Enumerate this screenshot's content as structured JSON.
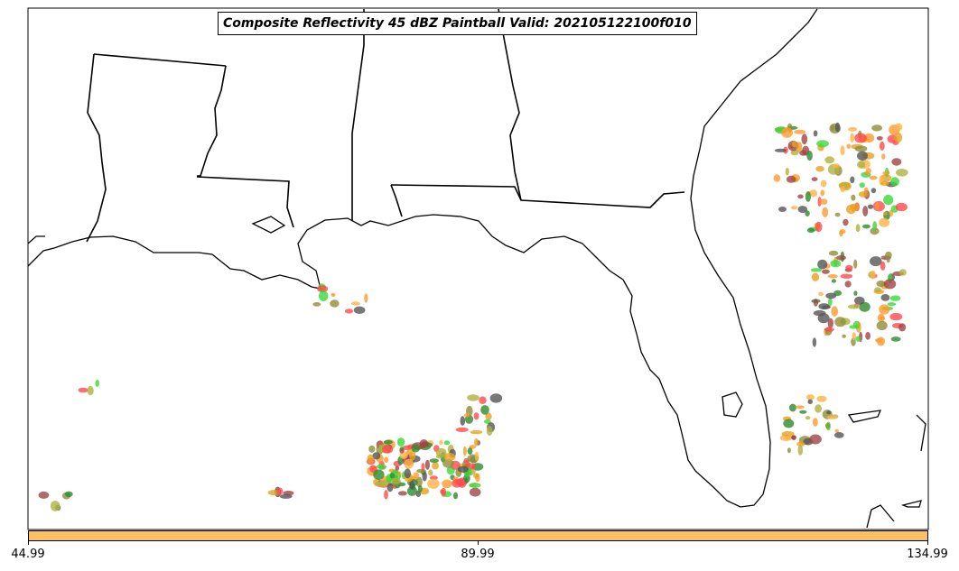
{
  "title": "Composite Reflectivity 45 dBZ Paintball Valid: 202105122100f010",
  "colorbar": {
    "color": "#ffc060",
    "ticks": [
      "44.99",
      "89.99",
      "134.99"
    ]
  },
  "member_colors": [
    "#ff4b4b",
    "#ff9a30",
    "#ffb347",
    "#3ad83a",
    "#2e8b2e",
    "#555555",
    "#a04545",
    "#8f8f3a",
    "#b0b040",
    "#e8a020"
  ]
}
